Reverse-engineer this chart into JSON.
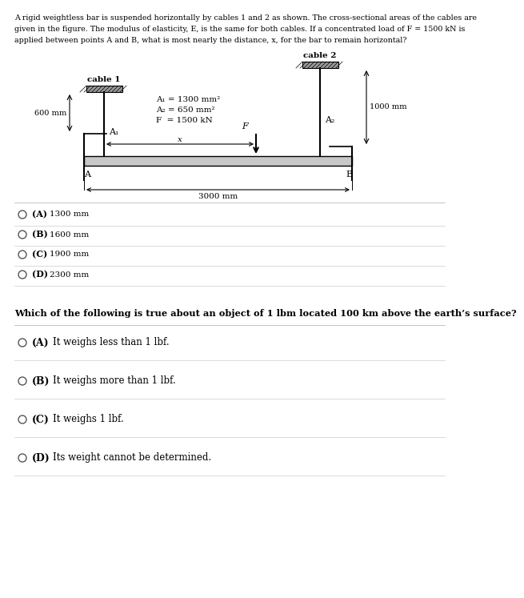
{
  "bg_color": "#ffffff",
  "problem_text_lines": [
    "A rigid weightless bar is suspended horizontally by cables 1 and 2 as shown. The cross-sectional areas of the cables are",
    "given in the figure. The modulus of elasticity, E, is the same for both cables. If a concentrated load of F = 1500 kN is",
    "applied between points A and B, what is most nearly the distance, x, for the bar to remain horizontal?"
  ],
  "q1_options": [
    {
      "label": "A",
      "text": "1300 mm"
    },
    {
      "label": "B",
      "text": "1600 mm"
    },
    {
      "label": "C",
      "text": "1900 mm"
    },
    {
      "label": "D",
      "text": "2300 mm"
    }
  ],
  "q2_text": "Which of the following is true about an object of 1 lbm located 100 km above the earth’s surface?",
  "q2_options": [
    {
      "label": "A",
      "text": "It weighs less than 1 lbf."
    },
    {
      "label": "B",
      "text": "It weighs more than 1 lbf."
    },
    {
      "label": "C",
      "text": "It weighs 1 lbf."
    },
    {
      "label": "D",
      "text": "Its weight cannot be determined."
    }
  ],
  "diagram": {
    "cable1_label": "cable 1",
    "cable2_label": "cable 2",
    "dim_600": "600 mm",
    "dim_1000": "1000 mm",
    "dim_3000": "3000 mm",
    "A1_label": "A₁",
    "A2_label": "A₂",
    "F_label": "F",
    "x_label": "x",
    "ann_line1": "A₁ = 1300 mm²",
    "ann_line2": "A₂ = 650 mm²",
    "ann_line3": "F  = 1500 kN",
    "point_A": "A",
    "point_B": "B"
  }
}
